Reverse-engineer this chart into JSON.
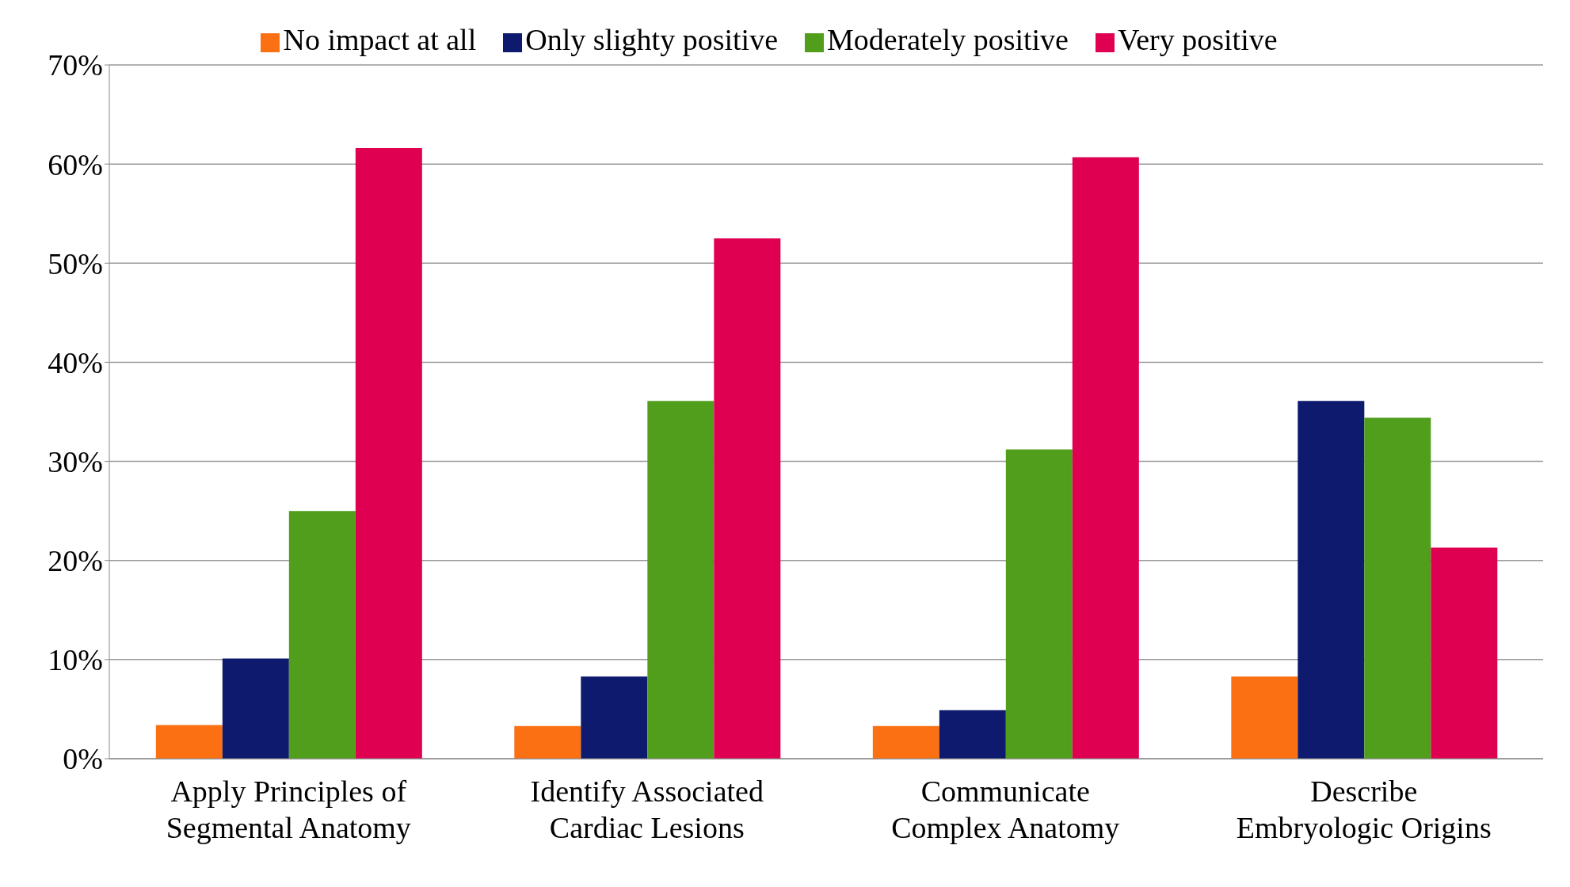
{
  "chart_data": {
    "type": "bar",
    "categories": [
      "Apply Principles of Segmental Anatomy",
      "Identify Associated Cardiac Lesions",
      "Communicate Complex Anatomy",
      "Describe Embryologic Origins"
    ],
    "series": [
      {
        "name": "No impact at all",
        "color": "#fa7013",
        "values": [
          3.4,
          3.3,
          3.3,
          8.3
        ]
      },
      {
        "name": "Only slighty positive",
        "color": "#0d1a6e",
        "values": [
          10.1,
          8.3,
          4.9,
          36.1
        ]
      },
      {
        "name": "Moderately positive",
        "color": "#519e1c",
        "values": [
          25,
          36.1,
          31.2,
          34.4
        ]
      },
      {
        "name": "Very positive",
        "color": "#e00052",
        "values": [
          61.6,
          52.5,
          60.7,
          21.3
        ]
      }
    ],
    "ylim": [
      0,
      70
    ],
    "yticks": [
      {
        "value": 0,
        "label": "0%"
      },
      {
        "value": 10,
        "label": "10%"
      },
      {
        "value": 20,
        "label": "20%"
      },
      {
        "value": 30,
        "label": "30%"
      },
      {
        "value": 40,
        "label": "40%"
      },
      {
        "value": 50,
        "label": "50%"
      },
      {
        "value": 60,
        "label": "60%"
      },
      {
        "value": 70,
        "label": "70%"
      }
    ],
    "grid": "y",
    "legend": "top"
  }
}
